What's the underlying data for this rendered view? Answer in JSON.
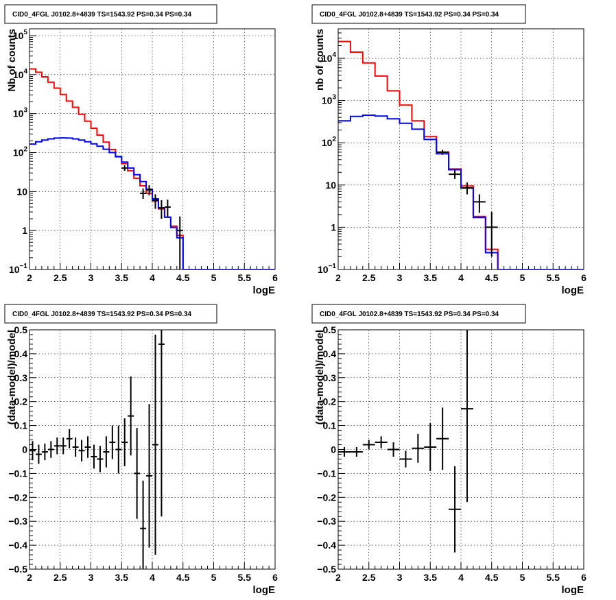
{
  "chart_data": [
    {
      "type": "line",
      "title": "CID0_4FGL J0102.8+4839 TS=1543.92 PS=0.34 PS=0.34",
      "xlabel": "logE",
      "ylabel": "Nb of counts",
      "log_y": true,
      "xlim": [
        2,
        6
      ],
      "ylim": [
        0.1,
        150000
      ],
      "grid": true,
      "x_ticks": [
        "2",
        "2.5",
        "3",
        "3.5",
        "4",
        "4.5",
        "5",
        "5.5",
        "6"
      ],
      "y_ticks": [
        {
          "value": 0.1,
          "base": "10",
          "exp": "−1"
        },
        {
          "value": 1,
          "text": "1"
        },
        {
          "value": 10,
          "text": "10"
        },
        {
          "value": 100,
          "base": "10",
          "exp": "2"
        },
        {
          "value": 1000,
          "base": "10",
          "exp": "3"
        },
        {
          "value": 10000,
          "base": "10",
          "exp": "4"
        },
        {
          "value": 100000,
          "base": "10",
          "exp": "5"
        }
      ],
      "bin_width": 0.1,
      "bin_edges_start": 2.0,
      "model_total": [
        14000,
        11500,
        8800,
        6400,
        4500,
        3100,
        2100,
        1450,
        960,
        640,
        420,
        280,
        185,
        120,
        80,
        52,
        34,
        22,
        14,
        9,
        5.7,
        3.6,
        2.2,
        1.3,
        0.75,
        0.1,
        0.1,
        0.1,
        0.1,
        0.1,
        0.1,
        0.1,
        0.1,
        0.1,
        0.1,
        0.1,
        0.1,
        0.1,
        0.1,
        0.1
      ],
      "model_component": [
        165,
        190,
        210,
        225,
        235,
        238,
        235,
        225,
        210,
        190,
        168,
        145,
        122,
        100,
        78,
        57,
        40,
        27,
        18,
        11.5,
        6.5,
        3.8,
        2.2,
        1.2,
        0.65,
        0.1,
        0.1,
        0.1,
        0.1,
        0.1,
        0.1,
        0.1,
        0.1,
        0.1,
        0.1,
        0.1,
        0.1,
        0.1,
        0.1,
        0.1
      ],
      "data_points": [
        {
          "x": 3.55,
          "y": 40,
          "elo": 34,
          "ehi": 47
        },
        {
          "x": 3.85,
          "y": 9,
          "elo": 6.5,
          "ehi": 12
        },
        {
          "x": 3.95,
          "y": 11,
          "elo": 8,
          "ehi": 14.5
        },
        {
          "x": 4.05,
          "y": 6,
          "elo": 3.6,
          "ehi": 8.5
        },
        {
          "x": 4.15,
          "y": 3.8,
          "elo": 2,
          "ehi": 6
        },
        {
          "x": 4.25,
          "y": 4,
          "elo": 2.2,
          "ehi": 6.2
        },
        {
          "x": 4.45,
          "y": 1,
          "elo": 0.1,
          "ehi": 2.3
        }
      ]
    },
    {
      "type": "line",
      "title": "CID0_4FGL J0102.8+4839 TS=1543.92 PS=0.34 PS=0.34",
      "xlabel": "logE",
      "ylabel": "nb of counts",
      "log_y": true,
      "xlim": [
        2,
        6
      ],
      "ylim": [
        0.1,
        50000
      ],
      "grid": true,
      "x_ticks": [
        "2",
        "2.5",
        "3",
        "3.5",
        "4",
        "4.5",
        "5",
        "5.5",
        "6"
      ],
      "y_ticks": [
        {
          "value": 0.1,
          "base": "10",
          "exp": "−1"
        },
        {
          "value": 1,
          "text": "1"
        },
        {
          "value": 10,
          "text": "10"
        },
        {
          "value": 100,
          "base": "10",
          "exp": "2"
        },
        {
          "value": 1000,
          "base": "10",
          "exp": "3"
        },
        {
          "value": 10000,
          "base": "10",
          "exp": "4"
        }
      ],
      "bin_width": 0.2,
      "bin_edges_start": 2.0,
      "model_total": [
        25000,
        14000,
        7800,
        3800,
        1700,
        780,
        330,
        140,
        60,
        24,
        9.5,
        1.8,
        0.3,
        0.1,
        0.1,
        0.1,
        0.1,
        0.1,
        0.1,
        0.1
      ],
      "model_component": [
        330,
        420,
        450,
        430,
        370,
        290,
        210,
        120,
        55,
        23,
        8.5,
        1.7,
        0.25,
        0.1,
        0.1,
        0.1,
        0.1,
        0.1,
        0.1,
        0.1
      ],
      "data_points": [
        {
          "x": 3.7,
          "y": 60,
          "elo": 52,
          "ehi": 68
        },
        {
          "x": 3.9,
          "y": 18,
          "elo": 14,
          "ehi": 22.5
        },
        {
          "x": 4.1,
          "y": 8.5,
          "elo": 6,
          "ehi": 11.5
        },
        {
          "x": 4.3,
          "y": 4,
          "elo": 2.2,
          "ehi": 6
        },
        {
          "x": 4.5,
          "y": 1,
          "elo": 0.2,
          "ehi": 2.3
        }
      ]
    },
    {
      "type": "scatter",
      "title": "CID0_4FGL J0102.8+4839 TS=1543.92 PS=0.34 PS=0.34",
      "xlabel": "logE",
      "ylabel": "(data-model)/model",
      "log_y": false,
      "xlim": [
        2,
        6
      ],
      "ylim": [
        -0.5,
        0.5
      ],
      "grid": true,
      "x_ticks": [
        "2",
        "2.5",
        "3",
        "3.5",
        "4",
        "4.5",
        "5",
        "5.5",
        "6"
      ],
      "y_ticks": [
        "−0.5",
        "−0.4",
        "−0.3",
        "−0.2",
        "−0.1",
        "0",
        "0.1",
        "0.2",
        "0.3",
        "0.4",
        "0.5"
      ],
      "bin_width": 0.1,
      "data_points": [
        {
          "x": 2.05,
          "y": -0.005,
          "err": 0.04
        },
        {
          "x": 2.15,
          "y": -0.02,
          "err": 0.04
        },
        {
          "x": 2.25,
          "y": -0.01,
          "err": 0.035
        },
        {
          "x": 2.35,
          "y": 0.0,
          "err": 0.035
        },
        {
          "x": 2.45,
          "y": 0.015,
          "err": 0.035
        },
        {
          "x": 2.55,
          "y": 0.015,
          "err": 0.035
        },
        {
          "x": 2.65,
          "y": 0.045,
          "err": 0.04
        },
        {
          "x": 2.75,
          "y": 0.01,
          "err": 0.04
        },
        {
          "x": 2.85,
          "y": -0.005,
          "err": 0.045
        },
        {
          "x": 2.95,
          "y": 0.01,
          "err": 0.045
        },
        {
          "x": 3.05,
          "y": -0.03,
          "err": 0.05
        },
        {
          "x": 3.15,
          "y": -0.04,
          "err": 0.055
        },
        {
          "x": 3.25,
          "y": -0.01,
          "err": 0.065
        },
        {
          "x": 3.35,
          "y": 0.03,
          "err": 0.07
        },
        {
          "x": 3.45,
          "y": 0.0,
          "err": 0.1
        },
        {
          "x": 3.55,
          "y": 0.03,
          "err": 0.1
        },
        {
          "x": 3.65,
          "y": 0.14,
          "err": 0.165
        },
        {
          "x": 3.75,
          "y": -0.1,
          "err": 0.19
        },
        {
          "x": 3.85,
          "y": -0.33,
          "err": 0.2
        },
        {
          "x": 3.95,
          "y": -0.11,
          "err": 0.3
        },
        {
          "x": 4.05,
          "y": 0.02,
          "err": 0.46
        },
        {
          "x": 4.15,
          "y": 0.44,
          "err": 0.72
        }
      ]
    },
    {
      "type": "scatter",
      "title": "CID0_4FGL J0102.8+4839 TS=1543.92 PS=0.34 PS=0.34",
      "xlabel": "logE",
      "ylabel": "(data-model)/model",
      "log_y": false,
      "xlim": [
        2,
        6
      ],
      "ylim": [
        -0.5,
        0.5
      ],
      "grid": true,
      "x_ticks": [
        "2",
        "2.5",
        "3",
        "3.5",
        "4",
        "4.5",
        "5",
        "5.5",
        "6"
      ],
      "y_ticks": [
        "−0.5",
        "−0.4",
        "−0.3",
        "−0.2",
        "−0.1",
        "0",
        "0.1",
        "0.2",
        "0.3",
        "0.4",
        "0.5"
      ],
      "bin_width": 0.2,
      "data_points": [
        {
          "x": 2.1,
          "y": -0.01,
          "err": 0.02
        },
        {
          "x": 2.3,
          "y": -0.01,
          "err": 0.02
        },
        {
          "x": 2.5,
          "y": 0.02,
          "err": 0.02
        },
        {
          "x": 2.7,
          "y": 0.03,
          "err": 0.025
        },
        {
          "x": 2.9,
          "y": 0.0,
          "err": 0.03
        },
        {
          "x": 3.1,
          "y": -0.04,
          "err": 0.035
        },
        {
          "x": 3.3,
          "y": 0.005,
          "err": 0.06
        },
        {
          "x": 3.5,
          "y": 0.01,
          "err": 0.1
        },
        {
          "x": 3.7,
          "y": 0.045,
          "err": 0.13
        },
        {
          "x": 3.9,
          "y": -0.25,
          "err": 0.18
        },
        {
          "x": 4.1,
          "y": 0.17,
          "err": 0.39
        }
      ]
    }
  ]
}
